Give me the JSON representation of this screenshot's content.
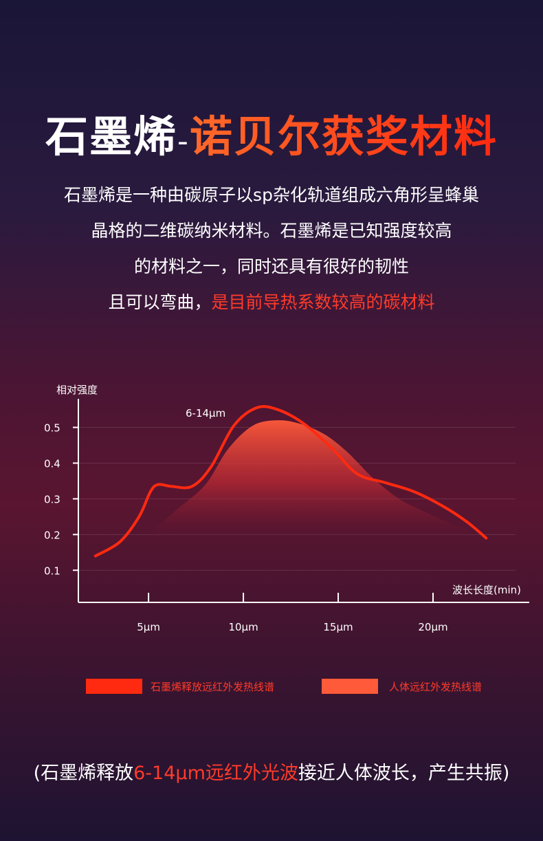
{
  "title": {
    "part1": "石墨烯",
    "dash": "-",
    "part2": "诺贝尔获奖材料"
  },
  "description": {
    "line1": "石墨烯是一种由碳原子以sp杂化轨道组成六角形呈蜂巢",
    "line2": "晶格的二维碳纳米材料。石墨烯是已知强度较高",
    "line3": "的材料之一，同时还具有很好的韧性",
    "line4_a": "且可以弯曲，",
    "line4_b": "是目前导热系数较高的碳材料"
  },
  "chart_data": {
    "type": "line",
    "ylabel": "相对强度",
    "xlabel": "波长长度(min)",
    "annotation": "6-14μm",
    "y_ticks": [
      0.5,
      0.4,
      0.3,
      0.2,
      0.1
    ],
    "y_tick_labels": [
      "0.5",
      "0.4",
      "0.3",
      "0.2",
      "0.1"
    ],
    "x_ticks": [
      5,
      10,
      15,
      20
    ],
    "x_tick_labels": [
      "5μm",
      "10μm",
      "15μm",
      "20μm"
    ],
    "xlim": [
      1.3,
      25
    ],
    "ylim": [
      0.01,
      0.58
    ],
    "grid": true,
    "series": [
      {
        "name": "石墨烯释放远红外发热线谱",
        "type": "line",
        "color": "#ff2a10",
        "x": [
          2.2,
          3.5,
          4.5,
          5.1,
          5.5,
          6.2,
          7.3,
          8.3,
          9.5,
          10.7,
          11.8,
          13.2,
          14.7,
          16.0,
          17.5,
          19.0,
          20.5,
          21.8,
          22.8
        ],
        "y": [
          0.14,
          0.18,
          0.25,
          0.32,
          0.34,
          0.335,
          0.335,
          0.39,
          0.505,
          0.555,
          0.55,
          0.51,
          0.44,
          0.37,
          0.345,
          0.32,
          0.28,
          0.235,
          0.19
        ]
      },
      {
        "name": "人体远红外发热线谱",
        "type": "area",
        "color": "#ff5a3a",
        "x": [
          5.2,
          6.5,
          8.0,
          9.2,
          10.5,
          11.8,
          13.0,
          14.3,
          15.5,
          16.8,
          18.2,
          19.5,
          21.0,
          22.0
        ],
        "y": [
          0.21,
          0.27,
          0.34,
          0.44,
          0.505,
          0.52,
          0.51,
          0.48,
          0.43,
          0.36,
          0.3,
          0.265,
          0.23,
          0.21
        ]
      }
    ],
    "legend_placement": "bottom"
  },
  "legend": {
    "item1": "石墨烯释放远红外发热线谱",
    "item2": "人体远红外发热线谱"
  },
  "footer": {
    "part1": "(石墨烯释放",
    "part2": "6-14μm远红外光波",
    "part3": "接近人体波长，产生共振)"
  },
  "colors": {
    "accent_red": "#ff2a10",
    "highlight_red": "#ff3b2a",
    "area_red": "#ff5a3a"
  }
}
